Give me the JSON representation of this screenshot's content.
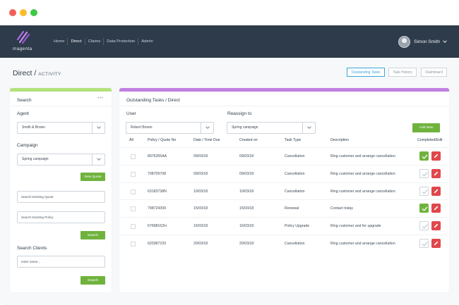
{
  "app": {
    "logo_text": "magenta",
    "nav": [
      "Home",
      "Direct",
      "Claims",
      "Data Protection",
      "Admin"
    ],
    "active_nav": "Direct",
    "user_name": "Simon Smith"
  },
  "page": {
    "title": "Direct /",
    "subtitle": "ACTIVITY",
    "buttons": [
      "Outstanding Tasks",
      "Task History",
      "Dashboard"
    ]
  },
  "search": {
    "heading": "Search",
    "more": "•••",
    "agent_label": "Agent",
    "agent_value": "Smith & Brown",
    "campaign_label": "Campaign",
    "campaign_value": "Spring campaign",
    "new_quote": "New Quote",
    "existing_quote_placeholder": "Search Existing Quote",
    "existing_policy_placeholder": "Search Existing Policy",
    "search_button": "Search",
    "clients_heading": "Search Clients",
    "clients_placeholder": "enter name...",
    "clients_search_button": "Search"
  },
  "tasks": {
    "heading": "Outstanding Tasks / Direct",
    "user_label": "User",
    "user_value": "Robert Brown",
    "reassign_label": "Reassign to",
    "reassign_value": "Spring campaign",
    "add_new": "Add New",
    "columns": [
      "All",
      "Policy / Quote No",
      "Date / Time Due",
      "Created on",
      "Task Type",
      "Description",
      "Completed/Edit"
    ],
    "rows": [
      {
        "policy": "8976265AA",
        "due": "09/03/18",
        "created": "09/03/18",
        "type": "Cancellation",
        "description": "Ring customer and arrange cancellation",
        "completed": true
      },
      {
        "policy": "708709708",
        "due": "09/03/18",
        "created": "09/03/18",
        "type": "Cancellation",
        "description": "Ring customer and arrange cancellation",
        "completed": false
      },
      {
        "policy": "63183738N",
        "due": "10/03/18",
        "created": "10/03/18",
        "type": "Cancellation",
        "description": "Ring customer and arrange cancellation",
        "completed": false
      },
      {
        "policy": "798724309",
        "due": "15/03/18",
        "created": "15/03/18",
        "type": "Renewal",
        "description": "Contact today",
        "completed": true
      },
      {
        "policy": "67698162H",
        "due": "16/03/18",
        "created": "16/03/18",
        "type": "Policy Upgrade",
        "description": "Ring customer and for upgrade",
        "completed": false
      },
      {
        "policy": "620387233",
        "due": "20/03/18",
        "created": "20/03/18",
        "type": "Cancellation",
        "description": "Ring customer and arrange cancellation",
        "completed": false
      }
    ]
  },
  "colors": {
    "navbar": "#2d3b4a",
    "accent_green": "#6fb33d",
    "accent_purple": "#c07fe0",
    "accent_blue": "#38a7d8",
    "edit_red": "#e0474c"
  }
}
